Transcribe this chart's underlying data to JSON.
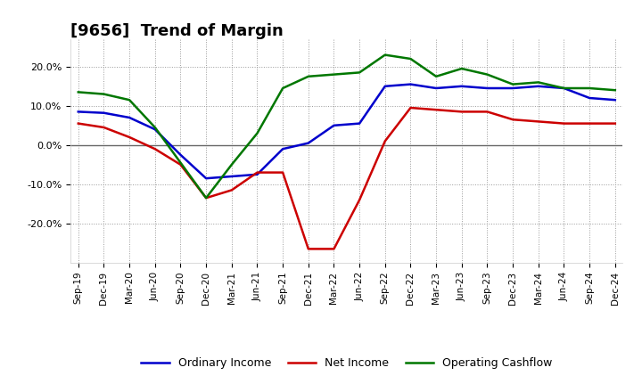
{
  "title": "[9656]  Trend of Margin",
  "x_labels": [
    "Sep-19",
    "Dec-19",
    "Mar-20",
    "Jun-20",
    "Sep-20",
    "Dec-20",
    "Mar-21",
    "Jun-21",
    "Sep-21",
    "Dec-21",
    "Mar-22",
    "Jun-22",
    "Sep-22",
    "Dec-22",
    "Mar-23",
    "Jun-23",
    "Sep-23",
    "Dec-23",
    "Mar-24",
    "Jun-24",
    "Sep-24",
    "Dec-24"
  ],
  "ordinary_income": [
    8.5,
    8.2,
    7.0,
    4.0,
    -2.5,
    -8.5,
    -8.0,
    -7.5,
    -1.0,
    0.5,
    5.0,
    5.5,
    15.0,
    15.5,
    14.5,
    15.0,
    14.5,
    14.5,
    15.0,
    14.5,
    12.0,
    11.5
  ],
  "net_income": [
    5.5,
    4.5,
    2.0,
    -1.0,
    -5.0,
    -13.5,
    -11.5,
    -7.0,
    -7.0,
    -26.5,
    -26.5,
    -14.0,
    1.0,
    9.5,
    9.0,
    8.5,
    8.5,
    6.5,
    6.0,
    5.5,
    5.5,
    5.5
  ],
  "operating_cashflow": [
    13.5,
    13.0,
    11.5,
    4.5,
    -4.5,
    -13.5,
    -5.0,
    3.0,
    14.5,
    17.5,
    18.0,
    18.5,
    23.0,
    22.0,
    17.5,
    19.5,
    18.0,
    15.5,
    16.0,
    14.5,
    14.5,
    14.0
  ],
  "colors": {
    "ordinary_income": "#0000cc",
    "net_income": "#cc0000",
    "operating_cashflow": "#007700"
  },
  "ylim": [
    -30,
    27
  ],
  "yticks": [
    -20.0,
    -10.0,
    0.0,
    10.0,
    20.0
  ],
  "ytick_labels": [
    "-20.0%",
    "-10.0%",
    "0.0%",
    "10.0%",
    "20.0%"
  ],
  "background_color": "#ffffff",
  "grid_color": "#999999",
  "title_fontsize": 13,
  "legend_labels": [
    "Ordinary Income",
    "Net Income",
    "Operating Cashflow"
  ]
}
